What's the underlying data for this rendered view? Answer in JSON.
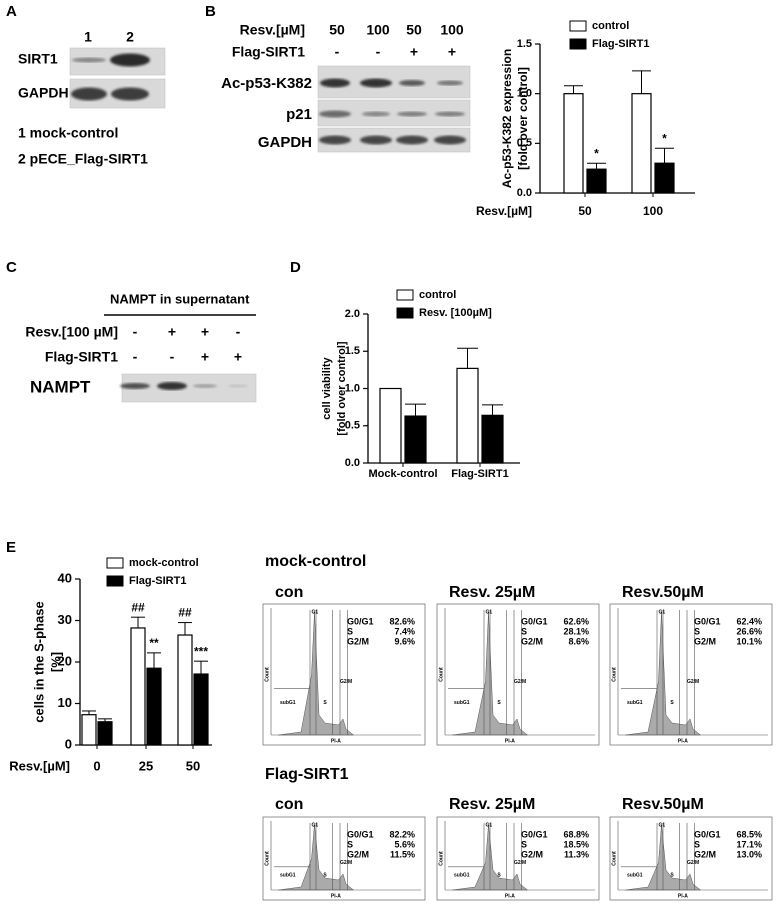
{
  "panel_letters": [
    "A",
    "B",
    "C",
    "D",
    "E"
  ],
  "blot_A": {
    "lanes": [
      "1",
      "2"
    ],
    "rows": [
      "SIRT1",
      "GAPDH"
    ],
    "legend": [
      "1 mock-control",
      "2 pECE_Flag-SIRT1"
    ]
  },
  "blot_B": {
    "conditions": [
      {
        "name": "Resv.[µM]",
        "values": [
          "50",
          "100",
          "50",
          "100"
        ]
      },
      {
        "name": "Flag-SIRT1",
        "values": [
          "-",
          "-",
          "+",
          "+"
        ]
      }
    ],
    "rows": [
      "Ac-p53-K382",
      "p21",
      "GAPDH"
    ]
  },
  "blot_C": {
    "header": "NAMPT in supernatant",
    "conditions": [
      {
        "name": "Resv.[100 µM]",
        "values": [
          "-",
          "+",
          "+",
          "-"
        ]
      },
      {
        "name": "Flag-SIRT1",
        "values": [
          "-",
          "-",
          "+",
          "+"
        ]
      }
    ],
    "rows": [
      "NAMPT"
    ]
  },
  "chart_data": [
    {
      "type": "bar",
      "ylabel": [
        "Ac-p53-K382 expression",
        "[fold over control]"
      ],
      "xlabel": "Resv.[µM]",
      "categories": [
        "50",
        "100"
      ],
      "series": [
        {
          "name": "control",
          "color": "#ffffff",
          "values": [
            1.0,
            1.0
          ],
          "errors": [
            0.08,
            0.23
          ],
          "annotations": [
            null,
            null
          ]
        },
        {
          "name": "Flag-SIRT1",
          "color": "#000000",
          "values": [
            0.24,
            0.3
          ],
          "errors": [
            0.06,
            0.15
          ],
          "annotations": [
            "*",
            "*"
          ]
        }
      ],
      "ylim": [
        0,
        1.5
      ],
      "yticks": [
        {
          "value": 0,
          "label": "0.0"
        },
        {
          "value": 0.5,
          "label": "0.5"
        },
        {
          "value": 1,
          "label": "1.0"
        },
        {
          "value": 1.5,
          "label": "1.5"
        }
      ]
    },
    {
      "type": "bar",
      "ylabel": [
        "cell viability",
        "[fold over control]"
      ],
      "categories": [
        "Mock-control",
        "Flag-SIRT1"
      ],
      "series": [
        {
          "name": "control",
          "color": "#ffffff",
          "values": [
            1.0,
            1.27
          ],
          "errors": [
            0,
            0.27
          ],
          "annotations": [
            null,
            null
          ]
        },
        {
          "name": "Resv. [100µM]",
          "color": "#000000",
          "values": [
            0.63,
            0.64
          ],
          "errors": [
            0.16,
            0.14
          ],
          "annotations": [
            null,
            null
          ]
        }
      ],
      "ylim": [
        0,
        2
      ],
      "yticks": [
        {
          "value": 0,
          "label": "0.0"
        },
        {
          "value": 0.5,
          "label": "0.5"
        },
        {
          "value": 1,
          "label": "1.0"
        },
        {
          "value": 1.5,
          "label": "1.5"
        },
        {
          "value": 2,
          "label": "2.0"
        }
      ]
    },
    {
      "type": "bar",
      "ylabel": [
        "cells in the S-phase",
        "[%]"
      ],
      "xlabel": "Resv.[µM]",
      "categories": [
        "0",
        "25",
        "50"
      ],
      "series": [
        {
          "name": "mock-control",
          "color": "#ffffff",
          "values": [
            7.3,
            28.2,
            26.5
          ],
          "errors": [
            0.9,
            2.6,
            3.0
          ],
          "annotations": [
            null,
            "##",
            "##"
          ]
        },
        {
          "name": "Flag-SIRT1",
          "color": "#000000",
          "values": [
            5.6,
            18.5,
            17.1
          ],
          "errors": [
            0.7,
            3.7,
            3.1
          ],
          "annotations": [
            null,
            "**",
            "***"
          ]
        }
      ],
      "ylim": [
        0,
        40
      ],
      "yticks": [
        0,
        10,
        20,
        30,
        40
      ]
    }
  ],
  "flow": {
    "axis": {
      "y": "Count",
      "x": "PI-A",
      "gates": [
        "subG1",
        "G1",
        "S",
        "G2/M"
      ]
    },
    "groups": [
      {
        "name": "mock-control",
        "plots": [
          {
            "title": "con",
            "stats": [
              [
                "G0/G1",
                "82.6%"
              ],
              [
                "S",
                "7.4%"
              ],
              [
                "G2/M",
                "9.6%"
              ]
            ]
          },
          {
            "title": "Resv. 25µM",
            "stats": [
              [
                "G0/G1",
                "62.6%"
              ],
              [
                "S",
                "28.1%"
              ],
              [
                "G2/M",
                "8.6%"
              ]
            ]
          },
          {
            "title": "Resv.50µM",
            "stats": [
              [
                "G0/G1",
                "62.4%"
              ],
              [
                "S",
                "26.6%"
              ],
              [
                "G2/M",
                "10.1%"
              ]
            ]
          }
        ]
      },
      {
        "name": "Flag-SIRT1",
        "plots": [
          {
            "title": "con",
            "stats": [
              [
                "G0/G1",
                "82.2%"
              ],
              [
                "S",
                "5.6%"
              ],
              [
                "G2/M",
                "11.5%"
              ]
            ]
          },
          {
            "title": "Resv. 25µM",
            "stats": [
              [
                "G0/G1",
                "68.8%"
              ],
              [
                "S",
                "18.5%"
              ],
              [
                "G2/M",
                "11.3%"
              ]
            ]
          },
          {
            "title": "Resv.50µM",
            "stats": [
              [
                "G0/G1",
                "68.5%"
              ],
              [
                "S",
                "17.1%"
              ],
              [
                "G2/M",
                "13.0%"
              ]
            ]
          }
        ]
      }
    ]
  }
}
